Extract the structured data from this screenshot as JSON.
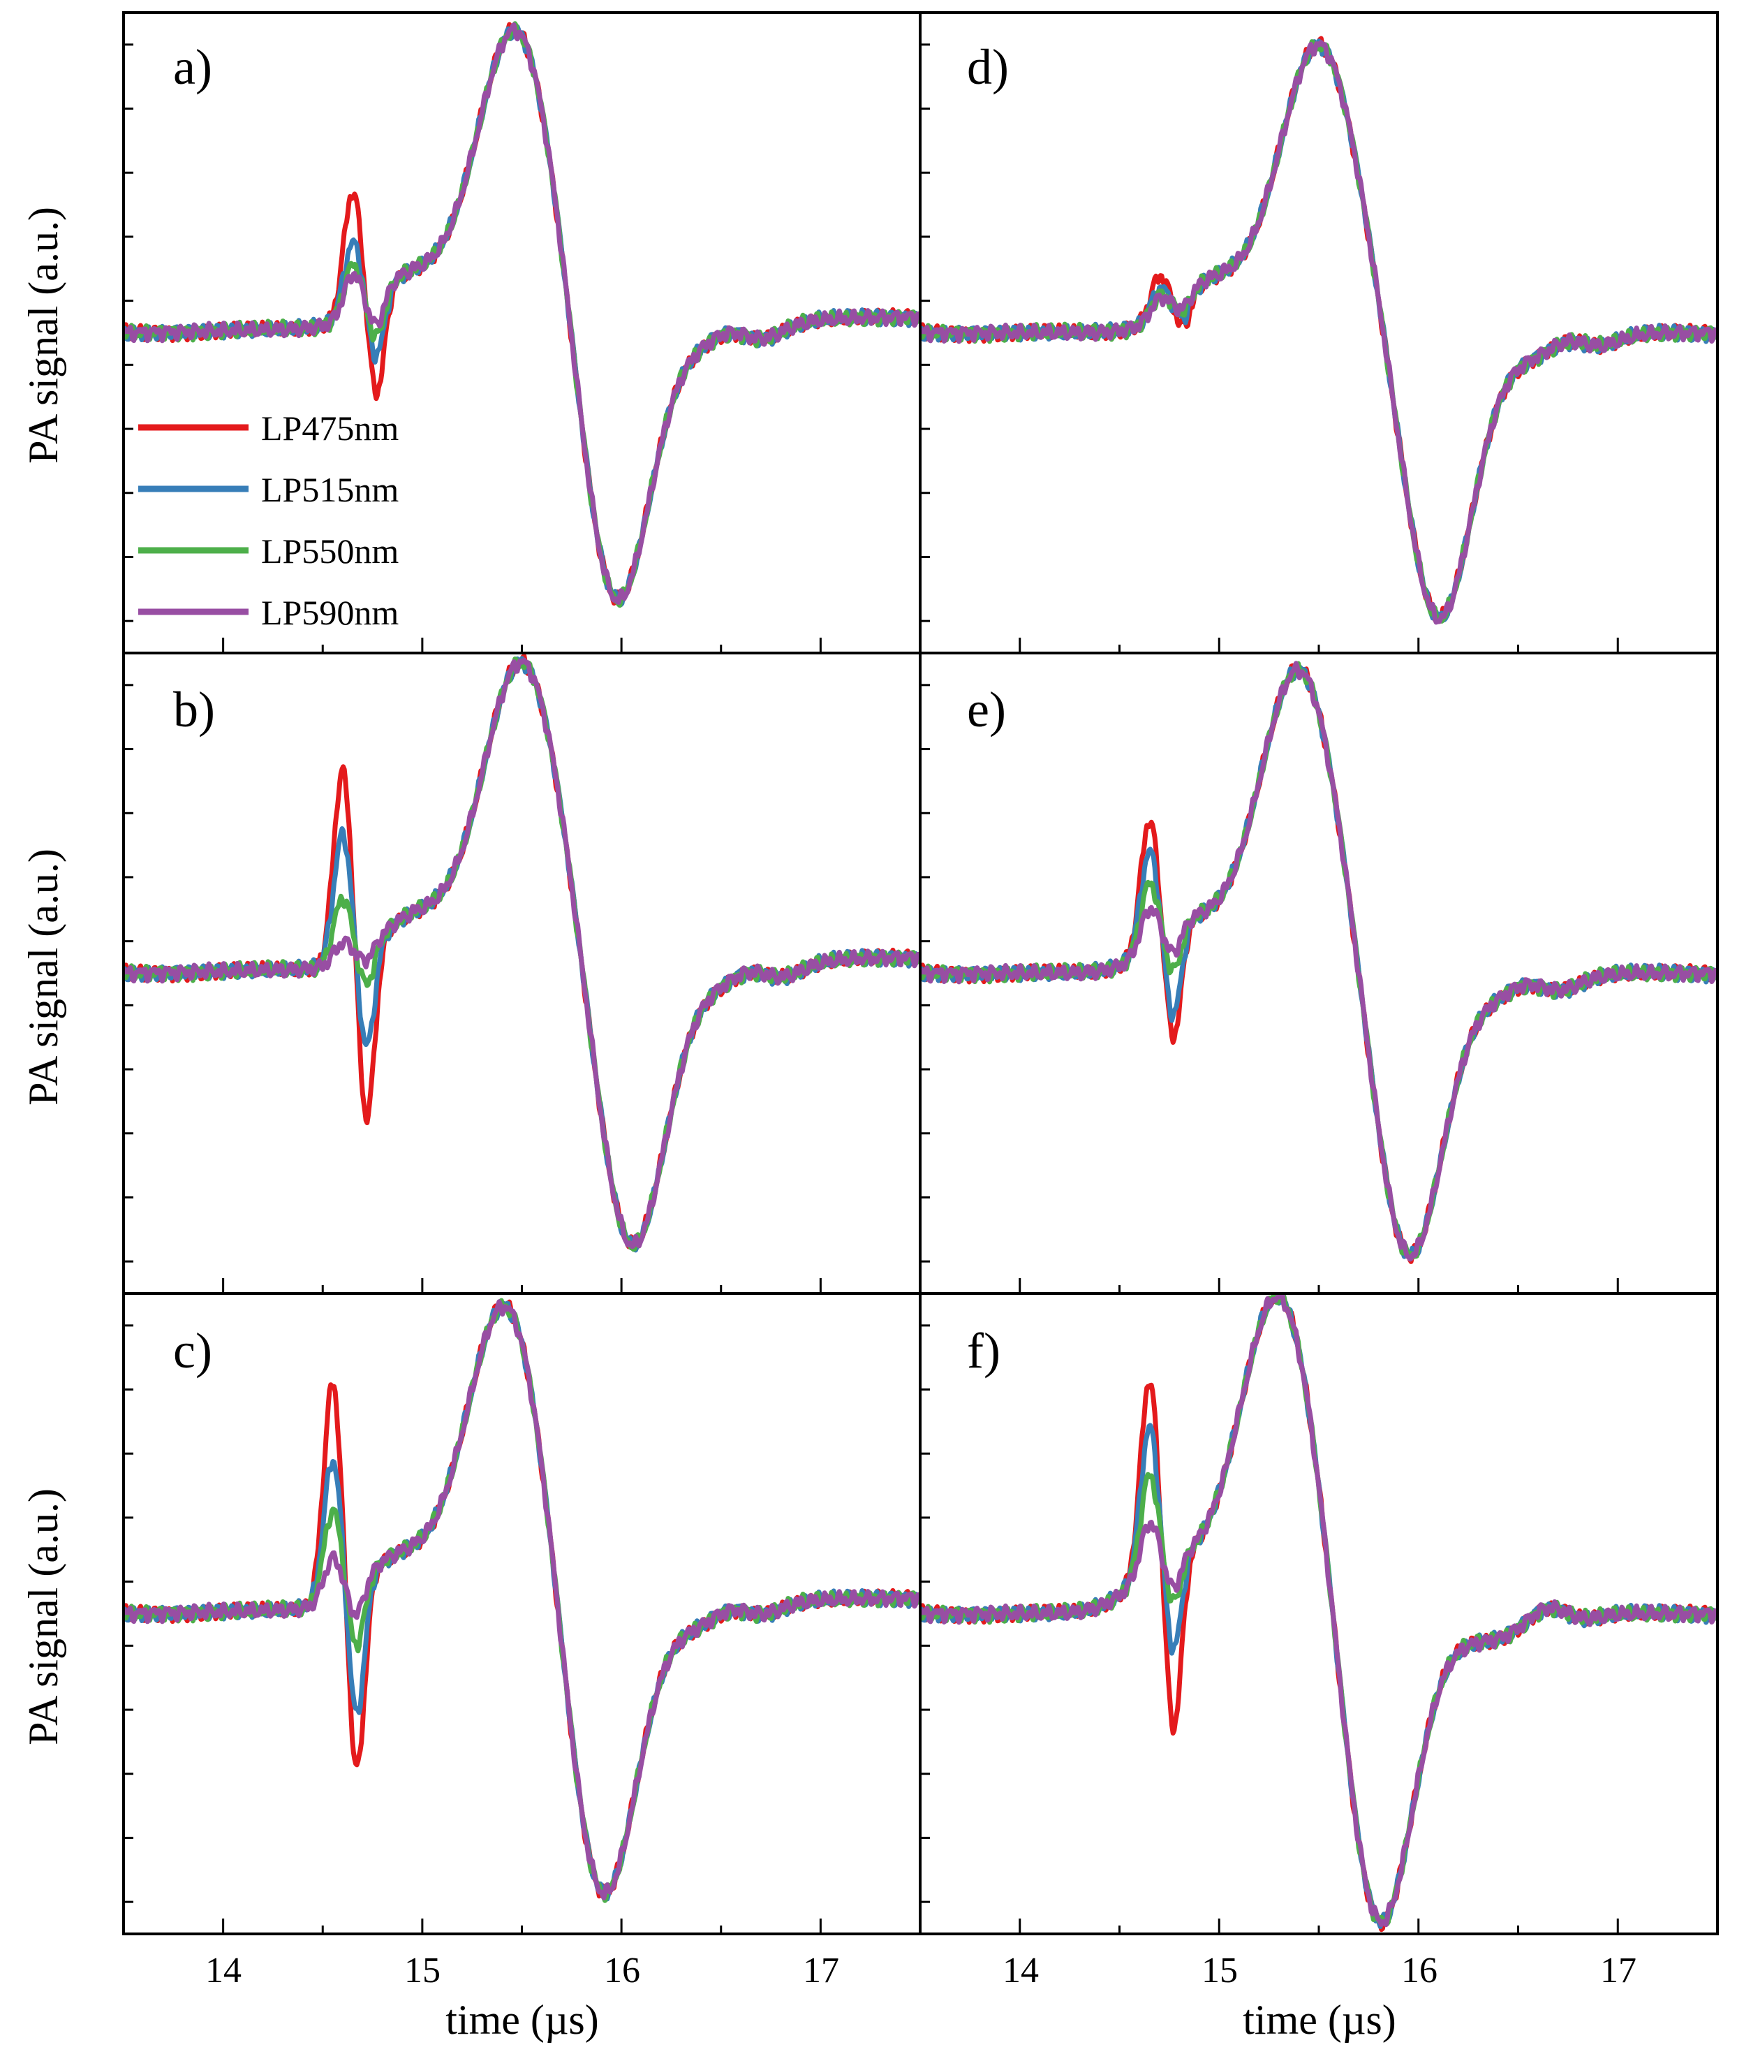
{
  "series_colors": {
    "LP475nm": "#e41a1c",
    "LP515nm": "#377eb8",
    "LP550nm": "#4daf4a",
    "LP590nm": "#984ea3"
  },
  "legend": [
    "LP475nm",
    "LP515nm",
    "LP550nm",
    "LP590nm"
  ],
  "ylabel": "PA signal (a.u.)",
  "xlabel": "time (µs)",
  "xticks": [
    "14",
    "15",
    "16",
    "17"
  ],
  "chart_data": [
    {
      "type": "line",
      "panel": "a)",
      "xlabel": "",
      "ylabel": "PA signal (a.u.)",
      "xlim": [
        13.5,
        17.5
      ],
      "ylim": [
        -1.0,
        1.0
      ],
      "main": {
        "base_left": 0.0,
        "base_right": 0.05,
        "pos_t": 15.47,
        "pos_a": 0.93,
        "neg_t": 15.97,
        "neg_a": -0.9,
        "shoulder": 0.15,
        "bump_t": 16.7,
        "bump_a": -0.02
      },
      "series": [
        {
          "name": "LP475nm",
          "spike_t": 14.65,
          "pos": 0.38,
          "neg": -0.32
        },
        {
          "name": "LP515nm",
          "spike_t": 14.65,
          "pos": 0.22,
          "neg": -0.2
        },
        {
          "name": "LP550nm",
          "spike_t": 14.65,
          "pos": 0.15,
          "neg": -0.14
        },
        {
          "name": "LP590nm",
          "spike_t": 14.65,
          "pos": 0.12,
          "neg": -0.1
        }
      ]
    },
    {
      "type": "line",
      "panel": "b)",
      "xlabel": "",
      "ylabel": "PA signal (a.u.)",
      "xlim": [
        13.5,
        17.5
      ],
      "ylim": [
        -1.0,
        1.0
      ],
      "main": {
        "base_left": 0.0,
        "base_right": 0.05,
        "pos_t": 15.5,
        "pos_a": 0.95,
        "neg_t": 16.05,
        "neg_a": -0.9,
        "shoulder": 0.15,
        "bump_t": 16.8,
        "bump_a": -0.02
      },
      "series": [
        {
          "name": "LP475nm",
          "spike_t": 14.6,
          "pos": 0.6,
          "neg": -0.55
        },
        {
          "name": "LP515nm",
          "spike_t": 14.6,
          "pos": 0.4,
          "neg": -0.32
        },
        {
          "name": "LP550nm",
          "spike_t": 14.6,
          "pos": 0.2,
          "neg": -0.12
        },
        {
          "name": "LP590nm",
          "spike_t": 14.6,
          "pos": 0.06,
          "neg": -0.04
        }
      ]
    },
    {
      "type": "line",
      "panel": "c)",
      "xlabel": "time (µs)",
      "ylabel": "PA signal (a.u.)",
      "xlim": [
        13.5,
        17.5
      ],
      "ylim": [
        -1.0,
        1.0
      ],
      "main": {
        "base_left": 0.0,
        "base_right": 0.05,
        "pos_t": 15.42,
        "pos_a": 0.95,
        "neg_t": 15.9,
        "neg_a": -0.95,
        "shoulder": 0.15,
        "bump_t": 16.7,
        "bump_a": -0.02
      },
      "series": [
        {
          "name": "LP475nm",
          "spike_t": 14.55,
          "pos": 0.68,
          "neg": -0.6
        },
        {
          "name": "LP515nm",
          "spike_t": 14.55,
          "pos": 0.44,
          "neg": -0.42
        },
        {
          "name": "LP550nm",
          "spike_t": 14.55,
          "pos": 0.28,
          "neg": -0.2
        },
        {
          "name": "LP590nm",
          "spike_t": 14.55,
          "pos": 0.13,
          "neg": -0.1
        }
      ]
    },
    {
      "type": "line",
      "panel": "d)",
      "xlabel": "",
      "ylabel": "",
      "xlim": [
        13.5,
        17.5
      ],
      "ylim": [
        -1.0,
        1.0
      ],
      "main": {
        "base_left": 0.0,
        "base_right": 0.0,
        "pos_t": 15.5,
        "pos_a": 0.9,
        "neg_t": 16.1,
        "neg_a": -0.9,
        "shoulder": 0.15,
        "bump_t": 16.9,
        "bump_a": -0.02
      },
      "series": [
        {
          "name": "LP475nm",
          "spike_t": 14.7,
          "pos": 0.12,
          "neg": -0.1
        },
        {
          "name": "LP515nm",
          "spike_t": 14.7,
          "pos": 0.08,
          "neg": -0.07
        },
        {
          "name": "LP550nm",
          "spike_t": 14.7,
          "pos": 0.06,
          "neg": -0.05
        },
        {
          "name": "LP590nm",
          "spike_t": 14.7,
          "pos": 0.05,
          "neg": -0.04
        }
      ]
    },
    {
      "type": "line",
      "panel": "e)",
      "xlabel": "",
      "ylabel": "",
      "xlim": [
        13.5,
        17.5
      ],
      "ylim": [
        -1.0,
        1.0
      ],
      "main": {
        "base_left": 0.0,
        "base_right": 0.0,
        "pos_t": 15.4,
        "pos_a": 0.95,
        "neg_t": 15.95,
        "neg_a": -0.9,
        "shoulder": 0.15,
        "bump_t": 16.7,
        "bump_a": -0.02
      },
      "series": [
        {
          "name": "LP475nm",
          "spike_t": 14.65,
          "pos": 0.4,
          "neg": -0.35
        },
        {
          "name": "LP515nm",
          "spike_t": 14.65,
          "pos": 0.3,
          "neg": -0.28
        },
        {
          "name": "LP550nm",
          "spike_t": 14.65,
          "pos": 0.2,
          "neg": -0.14
        },
        {
          "name": "LP590nm",
          "spike_t": 14.65,
          "pos": 0.12,
          "neg": -0.08
        }
      ]
    },
    {
      "type": "line",
      "panel": "f)",
      "xlabel": "time (µs)",
      "ylabel": "",
      "xlim": [
        13.5,
        17.5
      ],
      "ylim": [
        -1.0,
        1.0
      ],
      "main": {
        "base_left": 0.0,
        "base_right": 0.0,
        "pos_t": 15.3,
        "pos_a": 1.0,
        "neg_t": 15.8,
        "neg_a": -1.0,
        "shoulder": 0.15,
        "bump_t": 16.8,
        "bump_a": -0.02
      },
      "series": [
        {
          "name": "LP475nm",
          "spike_t": 14.65,
          "pos": 0.6,
          "neg": -0.55
        },
        {
          "name": "LP515nm",
          "spike_t": 14.65,
          "pos": 0.45,
          "neg": -0.3
        },
        {
          "name": "LP550nm",
          "spike_t": 14.65,
          "pos": 0.3,
          "neg": -0.15
        },
        {
          "name": "LP590nm",
          "spike_t": 14.65,
          "pos": 0.15,
          "neg": -0.1
        }
      ]
    }
  ]
}
